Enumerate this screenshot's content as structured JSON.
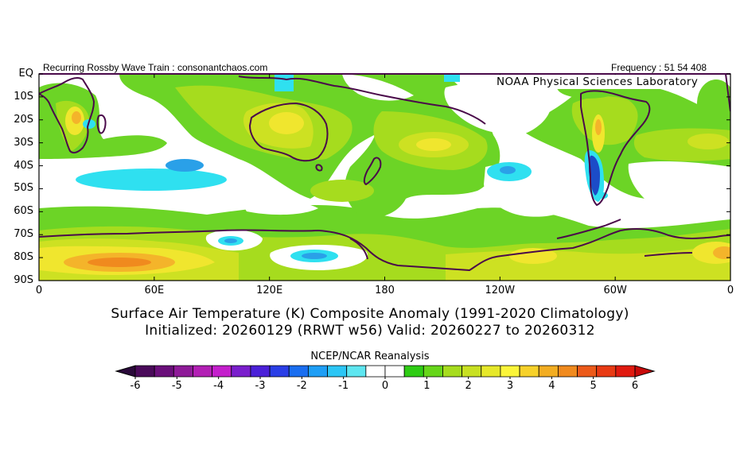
{
  "header": {
    "left": "Recurring Rossby Wave Train : consonantchaos.com",
    "right": "Frequency : 51 54 408"
  },
  "map": {
    "overlay_label": "NOAA Physical Sciences Laboratory",
    "lat_labels": [
      "EQ",
      "10S",
      "20S",
      "30S",
      "40S",
      "50S",
      "60S",
      "70S",
      "80S",
      "90S"
    ],
    "lon_labels": [
      "0",
      "60E",
      "120E",
      "180",
      "120W",
      "60W",
      "0"
    ],
    "region": "Southern Hemisphere, EQ to 90S"
  },
  "titles": {
    "line1": "Surface Air Temperature (K) Composite Anomaly (1991-2020 Climatology)",
    "line2": "Initialized: 20260129 (RRWT w56) Valid: 20260227 to 20260312"
  },
  "colorbar": {
    "label": "NCEP/NCAR Reanalysis",
    "tick_labels": [
      "-6",
      "-5",
      "-4",
      "-3",
      "-2",
      "-1",
      "0",
      "1",
      "2",
      "3",
      "4",
      "5",
      "6"
    ],
    "colors": [
      "#4a0a5a",
      "#6a0f7a",
      "#8e1a98",
      "#b21fb4",
      "#c41fcc",
      "#7a1ecc",
      "#4b20d8",
      "#2a3ee6",
      "#1a6ef0",
      "#1e9ef5",
      "#2cc6f5",
      "#5ee6f0",
      "#ffffff",
      "#ffffff",
      "#2ecc14",
      "#66d61a",
      "#a6dc1e",
      "#c8e022",
      "#e6e82a",
      "#fbf53a",
      "#f6d12a",
      "#f2ad22",
      "#f08a1e",
      "#ec5a1a",
      "#e83a14",
      "#e01a10"
    ]
  },
  "colors": {
    "land_outline": "#4a0a4a",
    "frame": "#000000",
    "shade_green": "#6cd426",
    "shade_lightgreen": "#a6dc1e",
    "shade_yellowgreen": "#cde122",
    "shade_yellow": "#f0e62e",
    "shade_orange": "#f4b42a",
    "shade_cyan": "#2fe0f0",
    "shade_blue": "#2aa0e8",
    "shade_darkblue": "#1c4cc8"
  }
}
